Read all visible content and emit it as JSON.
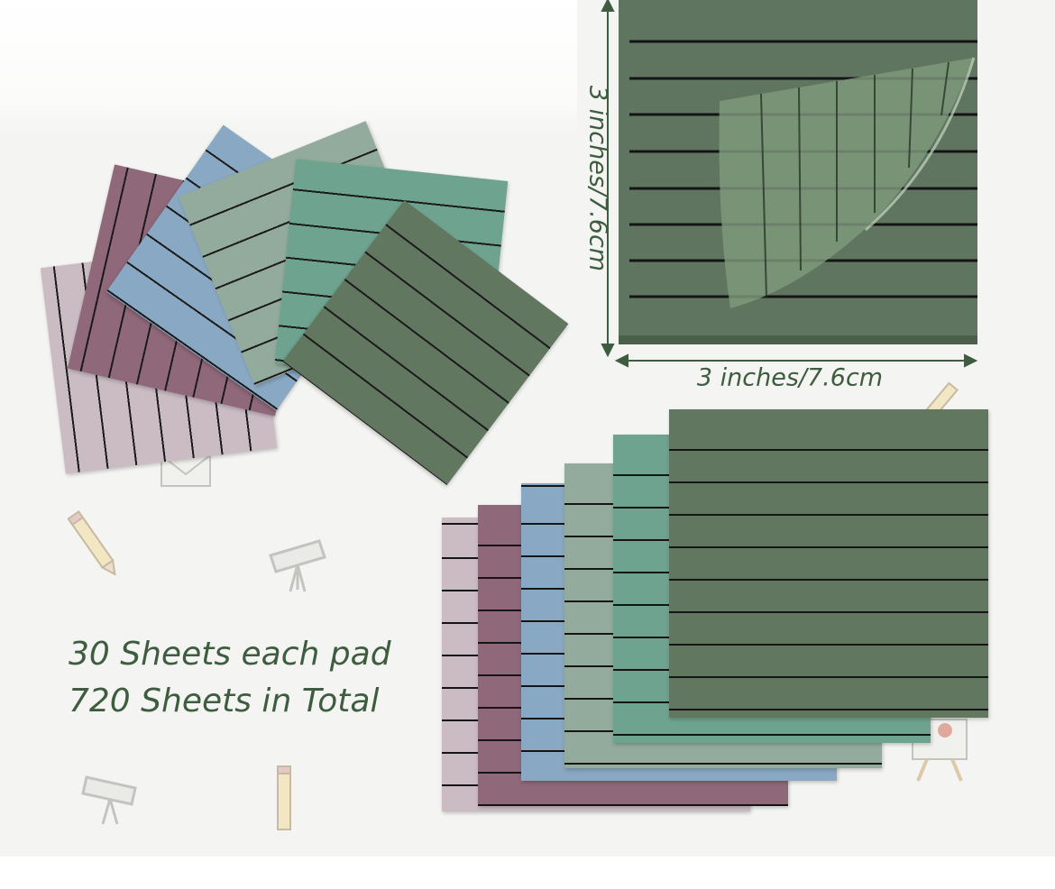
{
  "product": {
    "caption_line_1": "30 Sheets each pad",
    "caption_line_2": "720 Sheets in Total"
  },
  "dimensions": {
    "height_label": "3 inches/7.6cm",
    "width_label": "3 inches/7.6cm"
  },
  "colors": {
    "lavender": "#cbbcc4",
    "mauve": "#8f687a",
    "blue": "#89a8c4",
    "sage": "#93ab9c",
    "teal": "#6ea38f",
    "green": "#62775f",
    "text": "#3e5c3f"
  }
}
